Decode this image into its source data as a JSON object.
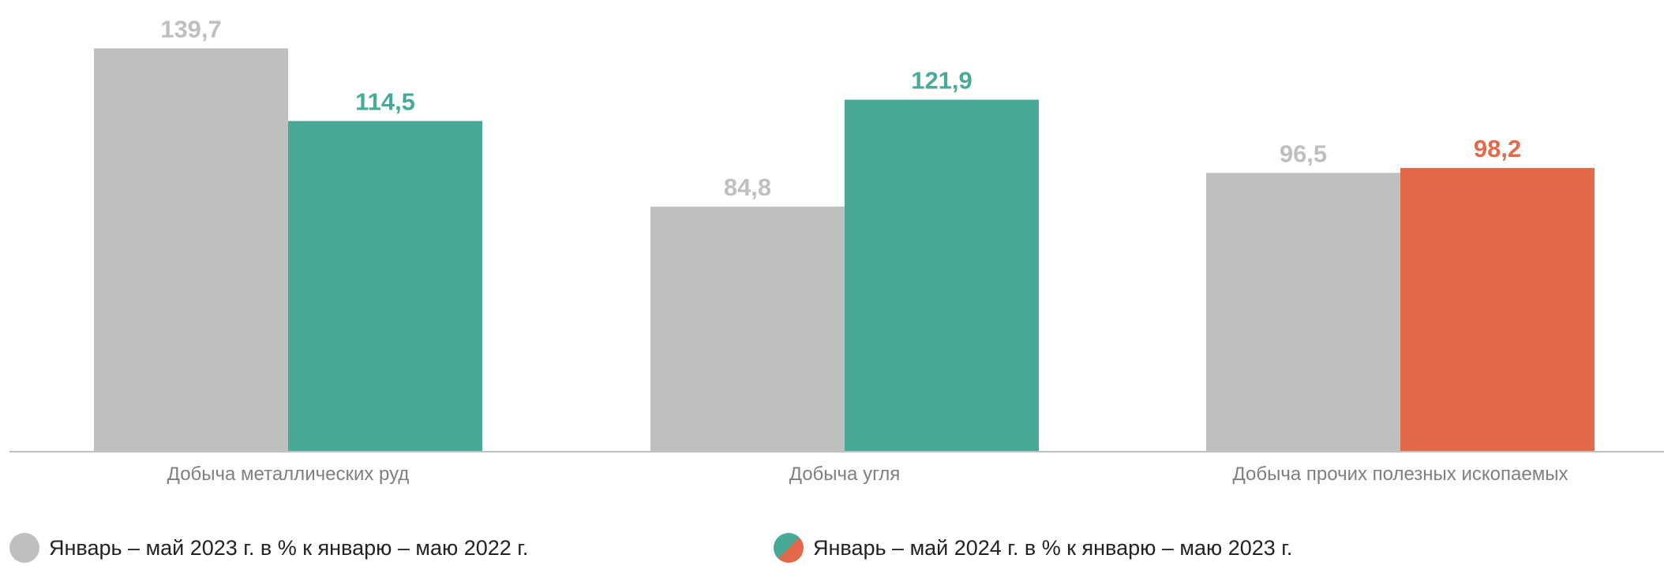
{
  "chart_data": {
    "type": "bar",
    "categories": [
      "Добыча металлических руд",
      "Добыча угля",
      "Добыча прочих полезных ископаемых"
    ],
    "series": [
      {
        "name": "Январь – май 2023 г. в % к январю – маю 2022 г.",
        "values": [
          139.7,
          84.8,
          96.5
        ],
        "labels": [
          "139,7",
          "84,8",
          "96,5"
        ],
        "colors": [
          "#bfbfbf",
          "#bfbfbf",
          "#bfbfbf"
        ]
      },
      {
        "name": "Январь – май 2024 г. в % к январю – маю 2023 г.",
        "values": [
          114.5,
          121.9,
          98.2
        ],
        "labels": [
          "114,5",
          "121,9",
          "98,2"
        ],
        "colors": [
          "#47aa98",
          "#47aa98",
          "#e2694a"
        ]
      }
    ],
    "ylim": [
      0,
      150
    ],
    "grid": false,
    "legend": "bottom",
    "label_colors": {
      "grey": "#bfbfbf",
      "green": "#47aa98",
      "orange": "#e2694a"
    }
  },
  "legend": [
    {
      "label": "Январь – май 2023 г. в % к январю – маю 2022 г.",
      "colors": [
        "#bfbfbf"
      ]
    },
    {
      "label": "Январь – май 2024 г. в % к январю – маю 2023 г.",
      "colors": [
        "#47aa98",
        "#e2694a"
      ]
    }
  ]
}
